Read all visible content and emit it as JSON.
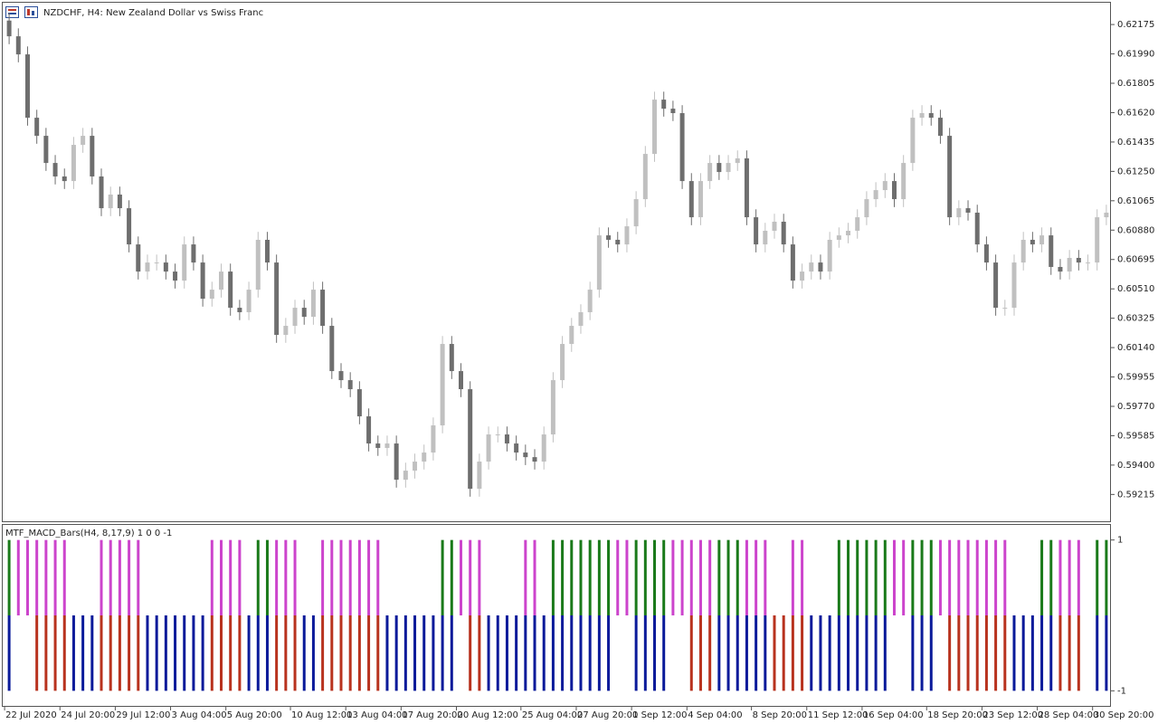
{
  "chart_data": [
    {
      "type": "candlestick",
      "title": "NZDCHF, H4:  New Zealand Dollar vs Swiss Franc",
      "up_color": "#c0c0c0",
      "down_color": "#6e6e6e",
      "ylim": [
        0.59046,
        0.62301
      ],
      "yticks": [
        0.62175,
        {
          "value": 0.6199,
          "label": "0.61990"
        },
        0.61805,
        {
          "value": 0.6162,
          "label": "0.61620"
        },
        0.61435,
        {
          "value": 0.6125,
          "label": "0.61250"
        },
        0.61065,
        {
          "value": 0.6088,
          "label": "0.60880"
        },
        0.60695,
        {
          "value": 0.6051,
          "label": "0.60510"
        },
        0.60325,
        {
          "value": 0.6014,
          "label": "0.60140"
        },
        0.59955,
        {
          "value": 0.5977,
          "label": "0.59770"
        },
        0.59585,
        {
          "value": 0.594,
          "label": "0.59400"
        },
        0.59215
      ],
      "x": [
        "22 Jul 2020",
        null,
        null,
        null,
        null,
        null,
        "24 Jul 20:00",
        null,
        null,
        null,
        null,
        null,
        "29 Jul 12:00",
        null,
        null,
        null,
        null,
        null,
        "3 Aug 04:00",
        null,
        null,
        null,
        null,
        null,
        "5 Aug 20:00",
        null,
        null,
        null,
        null,
        null,
        null,
        "10 Aug 12:00",
        null,
        null,
        null,
        null,
        null,
        "13 Aug 04:00",
        null,
        null,
        null,
        null,
        null,
        "17 Aug 20:00",
        null,
        null,
        null,
        null,
        null,
        "20 Aug 12:00",
        null,
        null,
        null,
        null,
        null,
        null,
        "25 Aug 04:00",
        null,
        null,
        null,
        null,
        null,
        "27 Aug 20:00",
        null,
        null,
        null,
        null,
        null,
        "1 Sep 12:00",
        null,
        null,
        null,
        null,
        null,
        "4 Sep 04:00",
        null,
        null,
        null,
        null,
        null,
        null,
        "8 Sep 20:00",
        null,
        null,
        null,
        null,
        null,
        "11 Sep 12:00",
        null,
        null,
        null,
        null,
        null,
        "16 Sep 04:00",
        null,
        null,
        null,
        null,
        null,
        null,
        "18 Sep 20:00",
        null,
        null,
        null,
        null,
        null,
        "23 Sep 12:00",
        null,
        null,
        null,
        null,
        null,
        "28 Sep 04:00",
        null,
        null,
        null,
        null,
        null,
        "30 Sep 20:00",
        null
      ],
      "open": [
        0.622,
        0.62101,
        0.61987,
        0.61588,
        0.61474,
        0.61303,
        0.61218,
        0.61189,
        0.61417,
        0.61474,
        0.61218,
        0.61018,
        0.61104,
        0.61018,
        0.6079,
        0.60619,
        0.60676,
        0.60676,
        0.60619,
        0.60562,
        0.6079,
        0.60676,
        0.60448,
        0.60505,
        0.60619,
        0.60391,
        0.60363,
        0.60505,
        0.60819,
        0.60676,
        0.6022,
        0.60277,
        0.60391,
        0.60334,
        0.60505,
        0.60277,
        0.59992,
        0.59935,
        0.59878,
        0.59707,
        0.59536,
        0.59508,
        0.59536,
        0.59308,
        0.59365,
        0.59422,
        0.59479,
        0.5965,
        0.60163,
        0.59992,
        0.59878,
        0.59251,
        0.59422,
        0.59593,
        0.59593,
        0.59536,
        0.59479,
        0.5945,
        0.59422,
        0.59593,
        0.59935,
        0.60163,
        0.60277,
        0.60363,
        0.60505,
        0.60847,
        0.60819,
        0.6079,
        0.60904,
        0.61075,
        0.6136,
        0.61702,
        0.61645,
        0.61617,
        0.61189,
        0.60961,
        0.61189,
        0.61303,
        0.61246,
        0.61303,
        0.61332,
        0.60961,
        0.6079,
        0.60876,
        0.60933,
        0.6079,
        0.60562,
        0.60619,
        0.60676,
        0.60619,
        0.60819,
        0.60847,
        0.60876,
        0.60961,
        0.61075,
        0.61132,
        0.61189,
        0.61075,
        0.61303,
        0.61588,
        0.61617,
        0.61588,
        0.61474,
        0.60961,
        0.61018,
        0.6099,
        0.6079,
        0.60676,
        0.60391,
        0.60391,
        0.60676,
        0.60819,
        0.6079,
        0.60847,
        0.60648,
        0.60619,
        0.60705,
        0.60676,
        0.60676,
        0.60961
      ],
      "high": [
        0.6225,
        0.62151,
        0.62037,
        0.61638,
        0.61524,
        0.61353,
        0.61268,
        0.61467,
        0.61524,
        0.61524,
        0.61268,
        0.61154,
        0.61154,
        0.61068,
        0.6084,
        0.60726,
        0.60726,
        0.60726,
        0.60669,
        0.6084,
        0.6084,
        0.60726,
        0.60555,
        0.60669,
        0.60669,
        0.60441,
        0.60555,
        0.60869,
        0.60869,
        0.60726,
        0.60327,
        0.60441,
        0.60441,
        0.60555,
        0.60555,
        0.60327,
        0.60042,
        0.59985,
        0.59928,
        0.59757,
        0.59586,
        0.59586,
        0.59586,
        0.59415,
        0.59472,
        0.59529,
        0.597,
        0.60213,
        0.60213,
        0.60042,
        0.59928,
        0.59472,
        0.59643,
        0.59643,
        0.59643,
        0.59586,
        0.59529,
        0.595,
        0.59643,
        0.59985,
        0.60213,
        0.60327,
        0.60413,
        0.60555,
        0.60897,
        0.60897,
        0.60869,
        0.60954,
        0.61125,
        0.6141,
        0.61752,
        0.61752,
        0.61695,
        0.61667,
        0.61239,
        0.61239,
        0.61353,
        0.61353,
        0.61353,
        0.61382,
        0.61382,
        0.61011,
        0.60926,
        0.60983,
        0.60983,
        0.6084,
        0.60669,
        0.60726,
        0.60726,
        0.60869,
        0.60897,
        0.60926,
        0.61011,
        0.61125,
        0.61182,
        0.61239,
        0.61239,
        0.61353,
        0.61638,
        0.61667,
        0.61667,
        0.61638,
        0.61524,
        0.61068,
        0.61068,
        0.6104,
        0.6084,
        0.60726,
        0.60441,
        0.60726,
        0.60869,
        0.60869,
        0.60897,
        0.60897,
        0.60698,
        0.60755,
        0.60755,
        0.60726,
        0.61011,
        0.6104
      ],
      "low": [
        0.62051,
        0.61937,
        0.61538,
        0.61424,
        0.61253,
        0.61168,
        0.61139,
        0.61139,
        0.61367,
        0.61168,
        0.60968,
        0.60968,
        0.60968,
        0.6074,
        0.60569,
        0.60569,
        0.60626,
        0.60569,
        0.60512,
        0.60512,
        0.60626,
        0.60398,
        0.60398,
        0.60455,
        0.60341,
        0.60313,
        0.60313,
        0.60455,
        0.60626,
        0.6017,
        0.6017,
        0.60227,
        0.60284,
        0.60284,
        0.60227,
        0.59942,
        0.59885,
        0.59828,
        0.59657,
        0.59486,
        0.59458,
        0.59458,
        0.59258,
        0.59258,
        0.59315,
        0.59372,
        0.59429,
        0.596,
        0.59942,
        0.59828,
        0.59201,
        0.59201,
        0.59372,
        0.59543,
        0.59486,
        0.59429,
        0.594,
        0.59372,
        0.59372,
        0.59543,
        0.59885,
        0.60113,
        0.60227,
        0.60313,
        0.60455,
        0.60769,
        0.6074,
        0.6074,
        0.60854,
        0.61025,
        0.6131,
        0.61595,
        0.61567,
        0.61139,
        0.60911,
        0.60911,
        0.61139,
        0.61196,
        0.61196,
        0.61253,
        0.60911,
        0.6074,
        0.6074,
        0.60826,
        0.6074,
        0.60512,
        0.60512,
        0.60569,
        0.60569,
        0.60569,
        0.60769,
        0.60797,
        0.60826,
        0.60911,
        0.61025,
        0.61082,
        0.61025,
        0.61025,
        0.61253,
        0.61538,
        0.61538,
        0.61424,
        0.60911,
        0.60911,
        0.6094,
        0.6074,
        0.60626,
        0.60341,
        0.60341,
        0.60341,
        0.60626,
        0.6074,
        0.6074,
        0.60598,
        0.60569,
        0.60569,
        0.60626,
        0.60626,
        0.60626,
        0.60911
      ],
      "close": [
        0.62101,
        0.61987,
        0.61588,
        0.61474,
        0.61303,
        0.61218,
        0.61189,
        0.61417,
        0.61474,
        0.61218,
        0.61018,
        0.61104,
        0.61018,
        0.6079,
        0.60619,
        0.60676,
        0.60676,
        0.60619,
        0.60562,
        0.6079,
        0.60676,
        0.60448,
        0.60505,
        0.60619,
        0.60391,
        0.60363,
        0.60505,
        0.60819,
        0.60676,
        0.6022,
        0.60277,
        0.60391,
        0.60334,
        0.60505,
        0.60277,
        0.59992,
        0.59935,
        0.59878,
        0.59707,
        0.59536,
        0.59508,
        0.59536,
        0.59308,
        0.59365,
        0.59422,
        0.59479,
        0.5965,
        0.60163,
        0.59992,
        0.59878,
        0.59251,
        0.59422,
        0.59593,
        0.59593,
        0.59536,
        0.59479,
        0.5945,
        0.59422,
        0.59593,
        0.59935,
        0.60163,
        0.60277,
        0.60363,
        0.60505,
        0.60847,
        0.60819,
        0.6079,
        0.60904,
        0.61075,
        0.6136,
        0.61702,
        0.61645,
        0.61617,
        0.61189,
        0.60961,
        0.61189,
        0.61303,
        0.61246,
        0.61303,
        0.61332,
        0.60961,
        0.6079,
        0.60876,
        0.60933,
        0.6079,
        0.60562,
        0.60619,
        0.60676,
        0.60619,
        0.60819,
        0.60847,
        0.60876,
        0.60961,
        0.61075,
        0.61132,
        0.61189,
        0.61075,
        0.61303,
        0.61588,
        0.61617,
        0.61588,
        0.61474,
        0.60961,
        0.61018,
        0.6099,
        0.6079,
        0.60676,
        0.60391,
        0.60391,
        0.60676,
        0.60819,
        0.6079,
        0.60847,
        0.60648,
        0.60619,
        0.60705,
        0.60676,
        0.60676,
        0.60961,
        0.6099
      ]
    },
    {
      "type": "bar",
      "title": "MTF_MACD_Bars(H4, 8,17,9) 1 0 0 -1",
      "ylim": [
        -1.2,
        1.2
      ],
      "yticks": [
        1,
        -1
      ],
      "series": [
        {
          "color": "#1a7a1a",
          "values": [
            1,
            null,
            null,
            null,
            null,
            null,
            null,
            null,
            null,
            null,
            null,
            null,
            null,
            null,
            null,
            null,
            null,
            null,
            null,
            null,
            null,
            null,
            null,
            null,
            null,
            null,
            null,
            1,
            1,
            null,
            null,
            null,
            null,
            null,
            null,
            null,
            null,
            null,
            null,
            null,
            null,
            null,
            null,
            null,
            null,
            null,
            null,
            1,
            1,
            null,
            null,
            null,
            null,
            null,
            null,
            null,
            null,
            null,
            null,
            1,
            1,
            1,
            1,
            1,
            1,
            1,
            null,
            null,
            1,
            1,
            1,
            1,
            null,
            null,
            null,
            null,
            null,
            1,
            1,
            1,
            null,
            null,
            null,
            null,
            null,
            null,
            null,
            null,
            null,
            null,
            1,
            1,
            1,
            1,
            1,
            1,
            null,
            null,
            1,
            1,
            1,
            null,
            null,
            null,
            null,
            null,
            null,
            null,
            null,
            null,
            null,
            null,
            1,
            1,
            null,
            null,
            null,
            null,
            1,
            1
          ]
        },
        {
          "color": "#cc44cc",
          "values": [
            null,
            1,
            1,
            1,
            1,
            1,
            1,
            null,
            null,
            null,
            1,
            1,
            1,
            1,
            1,
            null,
            null,
            null,
            null,
            null,
            null,
            null,
            1,
            1,
            1,
            1,
            null,
            null,
            null,
            1,
            1,
            1,
            null,
            null,
            1,
            1,
            1,
            1,
            1,
            1,
            1,
            null,
            null,
            null,
            null,
            null,
            null,
            null,
            null,
            1,
            1,
            1,
            null,
            null,
            null,
            null,
            1,
            1,
            null,
            null,
            null,
            null,
            null,
            null,
            null,
            null,
            1,
            1,
            null,
            null,
            null,
            null,
            1,
            1,
            1,
            1,
            1,
            null,
            null,
            null,
            1,
            1,
            1,
            null,
            null,
            1,
            1,
            null,
            null,
            null,
            null,
            null,
            null,
            null,
            null,
            null,
            1,
            1,
            null,
            null,
            null,
            1,
            1,
            1,
            1,
            1,
            1,
            1,
            1,
            null,
            null,
            null,
            null,
            null,
            1,
            1,
            1,
            null,
            null,
            null
          ]
        },
        {
          "color": "#0a1a9a",
          "values": [
            -1,
            null,
            null,
            null,
            null,
            null,
            null,
            -1,
            -1,
            -1,
            null,
            null,
            null,
            null,
            null,
            -1,
            -1,
            -1,
            -1,
            -1,
            -1,
            -1,
            null,
            null,
            null,
            null,
            -1,
            -1,
            -1,
            null,
            null,
            null,
            -1,
            -1,
            null,
            null,
            null,
            null,
            null,
            null,
            null,
            -1,
            -1,
            -1,
            -1,
            -1,
            -1,
            -1,
            -1,
            null,
            null,
            null,
            -1,
            -1,
            -1,
            -1,
            -1,
            -1,
            -1,
            -1,
            -1,
            -1,
            -1,
            -1,
            -1,
            -1,
            null,
            null,
            -1,
            -1,
            -1,
            -1,
            null,
            null,
            null,
            null,
            null,
            -1,
            -1,
            -1,
            -1,
            -1,
            -1,
            null,
            null,
            null,
            null,
            -1,
            -1,
            -1,
            -1,
            -1,
            -1,
            -1,
            -1,
            -1,
            null,
            null,
            -1,
            -1,
            -1,
            null,
            null,
            null,
            null,
            null,
            null,
            null,
            null,
            -1,
            -1,
            -1,
            -1,
            -1,
            null,
            null,
            null,
            null,
            -1,
            -1
          ]
        },
        {
          "color": "#b8321e",
          "values": [
            null,
            null,
            null,
            -1,
            -1,
            -1,
            -1,
            null,
            null,
            null,
            -1,
            -1,
            -1,
            -1,
            -1,
            null,
            null,
            null,
            null,
            null,
            null,
            null,
            -1,
            -1,
            -1,
            -1,
            null,
            null,
            null,
            -1,
            -1,
            -1,
            null,
            null,
            -1,
            -1,
            -1,
            -1,
            -1,
            -1,
            -1,
            null,
            null,
            null,
            null,
            null,
            null,
            null,
            null,
            null,
            -1,
            -1,
            null,
            null,
            null,
            null,
            null,
            null,
            null,
            null,
            null,
            null,
            null,
            null,
            null,
            null,
            null,
            null,
            null,
            null,
            null,
            null,
            null,
            null,
            -1,
            -1,
            -1,
            null,
            null,
            null,
            null,
            null,
            null,
            -1,
            -1,
            -1,
            -1,
            null,
            null,
            null,
            null,
            null,
            null,
            null,
            null,
            null,
            null,
            null,
            null,
            null,
            null,
            null,
            -1,
            -1,
            -1,
            -1,
            -1,
            -1,
            -1,
            null,
            null,
            null,
            null,
            null,
            -1,
            -1,
            -1,
            null,
            null,
            null
          ]
        }
      ]
    }
  ]
}
